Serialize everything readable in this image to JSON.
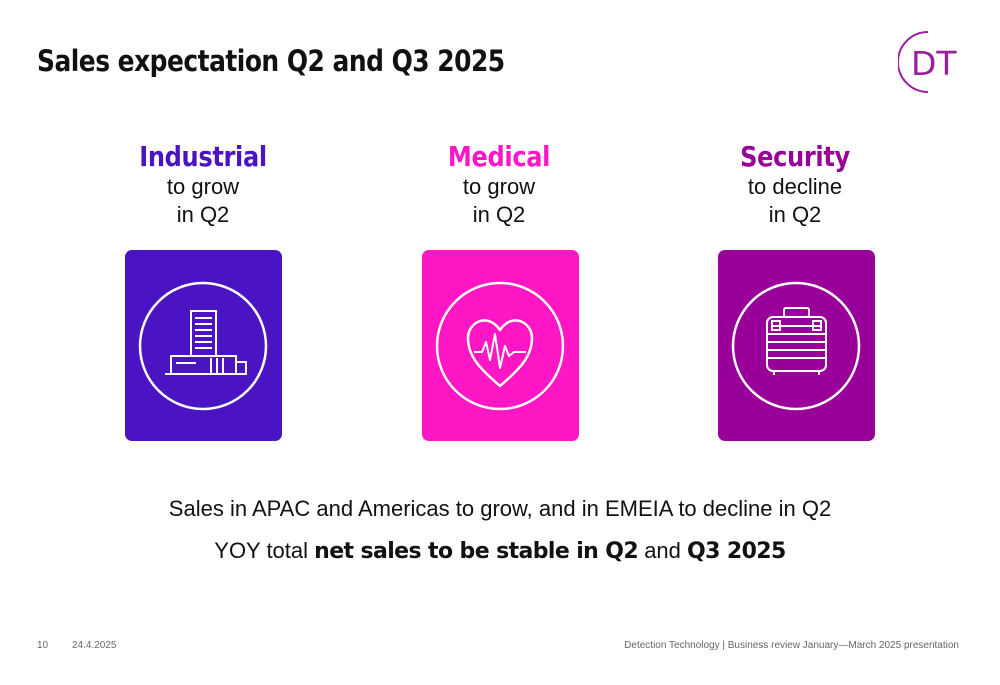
{
  "slide": {
    "title": "Sales expectation Q2 and Q3 2025",
    "logo_text": "DT",
    "colors": {
      "industrial": "#4a14c2",
      "medical": "#ff16c4",
      "security": "#990099"
    }
  },
  "segments": [
    {
      "name": "Industrial",
      "line1": "to grow",
      "line2": "in Q2",
      "icon": "building-icon"
    },
    {
      "name": "Medical",
      "line1": "to grow",
      "line2": "in Q2",
      "icon": "heart-pulse-icon"
    },
    {
      "name": "Security",
      "line1": "to decline",
      "line2": "in Q2",
      "icon": "luggage-icon"
    }
  ],
  "summary": {
    "line1": "Sales in APAC and Americas to grow, and in EMEIA to decline in Q2",
    "line2_part1": "YOY total ",
    "line2_bold1": "net sales to be stable in Q2",
    "line2_part2": " and ",
    "line2_bold2": "Q3 2025"
  },
  "footer": {
    "page_number": "10",
    "date": "24.4.2025",
    "source": "Detection Technology | Business review January—March 2025 presentation"
  }
}
